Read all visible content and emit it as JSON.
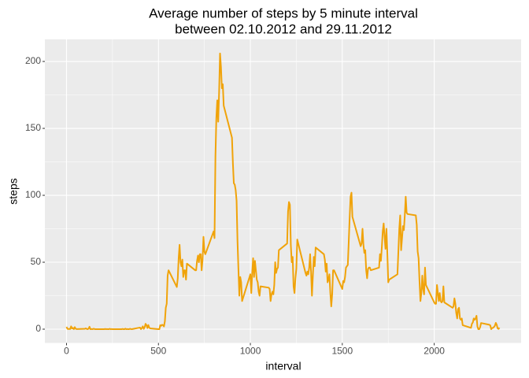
{
  "chart_data": {
    "type": "line",
    "title": [
      "Average number of steps by 5 minute interval",
      "between 02.10.2012 and 29.11.2012"
    ],
    "x_label": "interval",
    "y_label": "steps",
    "xlim": [
      -117.75,
      2472.75
    ],
    "ylim": [
      -10.3,
      216.5
    ],
    "xticks": [
      0,
      500,
      1000,
      1500,
      2000
    ],
    "yticks": [
      0,
      50,
      100,
      150,
      200
    ],
    "grid": true,
    "x": [
      0,
      5,
      10,
      15,
      20,
      25,
      30,
      35,
      40,
      45,
      50,
      55,
      100,
      105,
      110,
      115,
      120,
      125,
      130,
      135,
      140,
      145,
      150,
      155,
      200,
      205,
      210,
      215,
      220,
      225,
      230,
      235,
      240,
      245,
      250,
      255,
      300,
      305,
      310,
      315,
      320,
      325,
      330,
      335,
      340,
      345,
      350,
      355,
      400,
      405,
      410,
      415,
      420,
      425,
      430,
      435,
      440,
      445,
      450,
      455,
      500,
      505,
      510,
      515,
      520,
      525,
      530,
      535,
      540,
      545,
      550,
      555,
      600,
      605,
      610,
      615,
      620,
      625,
      630,
      635,
      640,
      645,
      650,
      655,
      700,
      705,
      710,
      715,
      720,
      725,
      730,
      735,
      740,
      745,
      750,
      755,
      800,
      805,
      810,
      815,
      820,
      825,
      830,
      835,
      840,
      845,
      850,
      855,
      900,
      905,
      910,
      915,
      920,
      925,
      930,
      935,
      940,
      945,
      950,
      955,
      1000,
      1005,
      1010,
      1015,
      1020,
      1025,
      1030,
      1035,
      1040,
      1045,
      1050,
      1055,
      1100,
      1105,
      1110,
      1115,
      1120,
      1125,
      1130,
      1135,
      1140,
      1145,
      1150,
      1155,
      1200,
      1205,
      1210,
      1215,
      1220,
      1225,
      1230,
      1235,
      1240,
      1245,
      1250,
      1255,
      1300,
      1305,
      1310,
      1315,
      1320,
      1325,
      1330,
      1335,
      1340,
      1345,
      1350,
      1355,
      1400,
      1405,
      1410,
      1415,
      1420,
      1425,
      1430,
      1435,
      1440,
      1445,
      1450,
      1455,
      1500,
      1505,
      1510,
      1515,
      1520,
      1525,
      1530,
      1535,
      1540,
      1545,
      1550,
      1555,
      1600,
      1605,
      1610,
      1615,
      1620,
      1625,
      1630,
      1635,
      1640,
      1645,
      1650,
      1655,
      1700,
      1705,
      1710,
      1715,
      1720,
      1725,
      1730,
      1735,
      1740,
      1745,
      1750,
      1755,
      1800,
      1805,
      1810,
      1815,
      1820,
      1825,
      1830,
      1835,
      1840,
      1845,
      1850,
      1855,
      1900,
      1905,
      1910,
      1915,
      1920,
      1925,
      1930,
      1935,
      1940,
      1945,
      1950,
      1955,
      2000,
      2005,
      2010,
      2015,
      2020,
      2025,
      2030,
      2035,
      2040,
      2045,
      2050,
      2055,
      2100,
      2105,
      2110,
      2115,
      2120,
      2125,
      2130,
      2135,
      2140,
      2145,
      2150,
      2155,
      2200,
      2205,
      2210,
      2215,
      2220,
      2225,
      2230,
      2235,
      2240,
      2245,
      2250,
      2255,
      2300,
      2305,
      2310,
      2315,
      2320,
      2325,
      2330,
      2335,
      2340,
      2345,
      2350,
      2355
    ],
    "series": [
      {
        "name": "steps",
        "color": "#f0a30a",
        "values": [
          1.7,
          0.3,
          0.1,
          0.2,
          0.1,
          2.1,
          0.5,
          0.9,
          0,
          1.5,
          0.3,
          0.1,
          0.3,
          0.6,
          0.2,
          0,
          0.4,
          1.8,
          0,
          0.1,
          0,
          0.2,
          0.3,
          0,
          0,
          0,
          0.2,
          0,
          0.1,
          0,
          0,
          0.3,
          0,
          0.1,
          0,
          0,
          0,
          0.2,
          0,
          0,
          0.4,
          0,
          0.1,
          0,
          0,
          0.3,
          0.1,
          0,
          1.2,
          0,
          0.9,
          2.1,
          0.2,
          1.4,
          4,
          3,
          0.8,
          3.1,
          1.1,
          0.6,
          0,
          0,
          3,
          2.5,
          3.3,
          3,
          2,
          6,
          16,
          19,
          40,
          44,
          31.5,
          38,
          53,
          63,
          50,
          47,
          52,
          39,
          44,
          44,
          37,
          49,
          44,
          44,
          51,
          55,
          50,
          56,
          56,
          44,
          52,
          69,
          58,
          56,
          73,
          68,
          129,
          158,
          171,
          155,
          177,
          206,
          196,
          180,
          183,
          167,
          143,
          124,
          109,
          108,
          104,
          96,
          66,
          45,
          25,
          39,
          35,
          21,
          41,
          27,
          42,
          53,
          39,
          51,
          44,
          37,
          35,
          28,
          25,
          32,
          31,
          30,
          21,
          26,
          28,
          26,
          33,
          50,
          42,
          45,
          46,
          59,
          64,
          88,
          95,
          93,
          63,
          50,
          54,
          32,
          27,
          38,
          45,
          67,
          42,
          40,
          43,
          41,
          46,
          56,
          43,
          25,
          40,
          54,
          47,
          61,
          56,
          52,
          43,
          49,
          35,
          37,
          41,
          27,
          17,
          26,
          44,
          44,
          30,
          36,
          35,
          39,
          46,
          47,
          48,
          65,
          83,
          99,
          102,
          84,
          62,
          64,
          75,
          63,
          57,
          59,
          44,
          38,
          45,
          46,
          46,
          44,
          46,
          56,
          51,
          61,
          73,
          79,
          69,
          60,
          75,
          57,
          35,
          37,
          41,
          58,
          75,
          85,
          59,
          68,
          77,
          74,
          85,
          99,
          87,
          86,
          85,
          78,
          58,
          53,
          36,
          21,
          27,
          40,
          30,
          26,
          46,
          33,
          20,
          19,
          19,
          33,
          27,
          21,
          27,
          21,
          20,
          21,
          32,
          20,
          16,
          17,
          23,
          19,
          12,
          8,
          15,
          16,
          8,
          7,
          8,
          3,
          1,
          4,
          5,
          8,
          7,
          8,
          10,
          2,
          0,
          0,
          1.6,
          4.6,
          3.3,
          2.8,
          0,
          0.8,
          1,
          1.6,
          2.6,
          4.7,
          3.3,
          0.6,
          0.2,
          1.1
        ]
      }
    ]
  }
}
